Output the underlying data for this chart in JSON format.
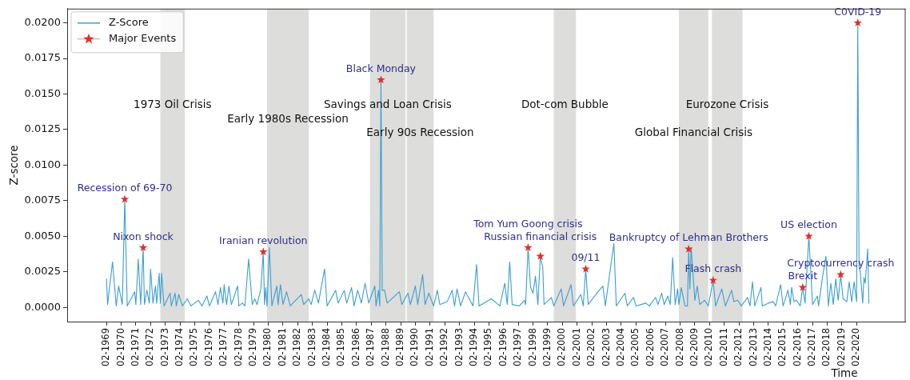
{
  "chart_data": {
    "type": "line",
    "xlabel": "Time",
    "ylabel": "Z-score",
    "legend": "top left",
    "xlim": [
      "1966-06",
      "2023-06"
    ],
    "ylim": [
      -0.001,
      0.021
    ],
    "xticks": [
      {
        "value": "1969-02",
        "label": "02-1969"
      },
      {
        "value": "1970-02",
        "label": "02-1970"
      },
      {
        "value": "1971-02",
        "label": "02-1971"
      },
      {
        "value": "1972-02",
        "label": "02-1972"
      },
      {
        "value": "1973-02",
        "label": "02-1973"
      },
      {
        "value": "1974-02",
        "label": "02-1974"
      },
      {
        "value": "1975-02",
        "label": "02-1975"
      },
      {
        "value": "1976-02",
        "label": "02-1976"
      },
      {
        "value": "1977-02",
        "label": "02-1977"
      },
      {
        "value": "1978-02",
        "label": "02-1978"
      },
      {
        "value": "1979-02",
        "label": "02-1979"
      },
      {
        "value": "1980-02",
        "label": "02-1980"
      },
      {
        "value": "1981-02",
        "label": "02-1981"
      },
      {
        "value": "1982-02",
        "label": "02-1982"
      },
      {
        "value": "1983-02",
        "label": "02-1983"
      },
      {
        "value": "1984-02",
        "label": "02-1984"
      },
      {
        "value": "1985-02",
        "label": "02-1985"
      },
      {
        "value": "1986-02",
        "label": "02-1986"
      },
      {
        "value": "1987-02",
        "label": "02-1987"
      },
      {
        "value": "1988-02",
        "label": "02-1988"
      },
      {
        "value": "1989-02",
        "label": "02-1989"
      },
      {
        "value": "1990-02",
        "label": "02-1990"
      },
      {
        "value": "1991-02",
        "label": "02-1991"
      },
      {
        "value": "1992-02",
        "label": "02-1992"
      },
      {
        "value": "1993-02",
        "label": "02-1993"
      },
      {
        "value": "1994-02",
        "label": "02-1994"
      },
      {
        "value": "1995-02",
        "label": "02-1995"
      },
      {
        "value": "1996-02",
        "label": "02-1996"
      },
      {
        "value": "1997-02",
        "label": "02-1997"
      },
      {
        "value": "1998-02",
        "label": "02-1998"
      },
      {
        "value": "1999-02",
        "label": "02-1999"
      },
      {
        "value": "2000-02",
        "label": "02-2000"
      },
      {
        "value": "2001-02",
        "label": "02-2001"
      },
      {
        "value": "2002-02",
        "label": "02-2002"
      },
      {
        "value": "2003-02",
        "label": "02-2003"
      },
      {
        "value": "2004-02",
        "label": "02-2004"
      },
      {
        "value": "2005-02",
        "label": "02-2005"
      },
      {
        "value": "2006-02",
        "label": "02-2006"
      },
      {
        "value": "2007-02",
        "label": "02-2007"
      },
      {
        "value": "2008-02",
        "label": "02-2008"
      },
      {
        "value": "2009-02",
        "label": "02-2009"
      },
      {
        "value": "2010-02",
        "label": "02-2010"
      },
      {
        "value": "2011-02",
        "label": "02-2011"
      },
      {
        "value": "2012-02",
        "label": "02-2012"
      },
      {
        "value": "2013-02",
        "label": "02-2013"
      },
      {
        "value": "2014-02",
        "label": "02-2014"
      },
      {
        "value": "2015-02",
        "label": "02-2015"
      },
      {
        "value": "2016-02",
        "label": "02-2016"
      },
      {
        "value": "2017-02",
        "label": "02-2017"
      },
      {
        "value": "2018-02",
        "label": "02-2018"
      },
      {
        "value": "2019-02",
        "label": "02-2019"
      },
      {
        "value": "2020-02",
        "label": "02-2020"
      }
    ],
    "yticks": [
      {
        "value": 0,
        "label": "0.0000"
      },
      {
        "value": 0.0025,
        "label": "0.0025"
      },
      {
        "value": 0.005,
        "label": "0.0050"
      },
      {
        "value": 0.0075,
        "label": "0.0075"
      },
      {
        "value": 0.01,
        "label": "0.0100"
      },
      {
        "value": 0.0125,
        "label": "0.0125"
      },
      {
        "value": 0.015,
        "label": "0.0150"
      },
      {
        "value": 0.0175,
        "label": "0.0175"
      },
      {
        "value": 0.02,
        "label": "0.0200"
      }
    ],
    "series": [
      {
        "name": "Z-Score",
        "color": "#3a9fd2",
        "x": [
          "1969-02",
          "1969-03",
          "1969-07",
          "1969-10",
          "1969-12",
          "1970-03",
          "1970-05",
          "1970-07",
          "1971-01",
          "1971-02",
          "1971-04",
          "1971-06",
          "1971-08",
          "1971-09",
          "1971-11",
          "1972-01",
          "1972-02",
          "1972-04",
          "1972-06",
          "1972-07",
          "1972-09",
          "1972-10",
          "1972-11",
          "1973-01",
          "1973-06",
          "1973-07",
          "1973-10",
          "1973-11",
          "1974-01",
          "1974-04",
          "1974-08",
          "1974-11",
          "1975-05",
          "1975-08",
          "1975-12",
          "1976-02",
          "1976-07",
          "1976-09",
          "1976-11",
          "1977-01",
          "1977-02",
          "1977-04",
          "1977-06",
          "1977-08",
          "1978-01",
          "1978-02",
          "1978-05",
          "1978-07",
          "1978-10",
          "1979-01",
          "1979-03",
          "1979-05",
          "1979-08",
          "1979-10",
          "1979-11",
          "1979-12",
          "1980-01",
          "1980-03",
          "1980-05",
          "1980-09",
          "1980-10",
          "1980-12",
          "1981-02",
          "1981-05",
          "1981-08",
          "1982-05",
          "1982-07",
          "1982-11",
          "1983-01",
          "1983-04",
          "1983-07",
          "1983-12",
          "1984-02",
          "1984-09",
          "1984-11",
          "1985-04",
          "1985-06",
          "1985-10",
          "1985-12",
          "1986-03",
          "1986-06",
          "1986-09",
          "1986-12",
          "1987-05",
          "1987-06",
          "1987-08",
          "1987-09",
          "1987-10",
          "1987-11",
          "1988-01",
          "1988-03",
          "1989-01",
          "1989-03",
          "1989-08",
          "1989-10",
          "1990-02",
          "1990-04",
          "1990-08",
          "1990-10",
          "1991-01",
          "1991-05",
          "1991-08",
          "1991-10",
          "1992-04",
          "1992-08",
          "1992-10",
          "1992-12",
          "1993-03",
          "1993-07",
          "1994-01",
          "1994-04",
          "1994-06",
          "1995-04",
          "1995-11",
          "1996-03",
          "1996-05",
          "1996-07",
          "1996-09",
          "1997-03",
          "1997-07",
          "1997-08",
          "1997-10",
          "1997-12",
          "1998-02",
          "1998-04",
          "1998-06",
          "1998-08",
          "1998-10",
          "1998-11",
          "1999-05",
          "1999-07",
          "2000-01",
          "2000-03",
          "2000-09",
          "2000-11",
          "2001-05",
          "2001-07",
          "2001-09",
          "2001-11",
          "2002-08",
          "2002-11",
          "2003-01",
          "2003-08",
          "2003-10",
          "2004-05",
          "2004-07",
          "2004-12",
          "2005-02",
          "2005-10",
          "2006-01",
          "2006-06",
          "2006-08",
          "2006-11",
          "2007-01",
          "2007-04",
          "2007-06",
          "2007-08",
          "2007-10",
          "2007-12",
          "2008-01",
          "2008-03",
          "2008-06",
          "2008-08",
          "2008-09",
          "2008-10",
          "2008-11",
          "2009-02",
          "2009-04",
          "2009-06",
          "2009-10",
          "2010-01",
          "2010-05",
          "2010-07",
          "2010-12",
          "2011-03",
          "2011-08",
          "2011-10",
          "2012-01",
          "2012-04",
          "2012-09",
          "2012-11",
          "2013-01",
          "2013-03",
          "2013-08",
          "2013-09",
          "2014-02",
          "2014-06",
          "2014-08",
          "2014-12",
          "2015-02",
          "2015-06",
          "2015-08",
          "2015-09",
          "2015-11",
          "2016-01",
          "2016-04",
          "2016-06",
          "2016-08",
          "2016-11",
          "2017-02",
          "2017-06",
          "2017-07",
          "2017-10",
          "2018-01",
          "2018-03",
          "2018-05",
          "2018-07",
          "2018-09",
          "2018-11",
          "2019-01",
          "2019-03",
          "2019-06",
          "2019-08",
          "2019-10",
          "2019-12",
          "2020-02",
          "2020-03",
          "2020-04",
          "2020-05",
          "2020-07",
          "2020-08",
          "2020-09",
          "2020-11",
          "2020-12"
        ],
        "values": [
          0.002,
          0.0002,
          0.0032,
          0.0001,
          0.0015,
          0.0002,
          0.0076,
          0.0001,
          0.0011,
          0.0002,
          0.0034,
          0.0002,
          0.0042,
          0.0002,
          0.0012,
          0.0003,
          0.0027,
          0.0003,
          0.0015,
          0.0003,
          0.0024,
          0.0003,
          0.0024,
          0.0001,
          0.001,
          0.0001,
          0.001,
          0.0001,
          0.0009,
          0.0001,
          0.0006,
          0.0001,
          0.0005,
          0.0001,
          0.0008,
          0.0001,
          0.0011,
          0.0002,
          0.0014,
          0.0003,
          0.0016,
          0.0002,
          0.0015,
          0.0002,
          0.0015,
          0.0001,
          0.0003,
          0.0001,
          0.0034,
          0.0002,
          0.0006,
          0.0002,
          0.0013,
          0.0039,
          0.0002,
          0.0014,
          0.0001,
          0.0042,
          0.0001,
          0.0015,
          0.0002,
          0.0016,
          0.0002,
          0.0011,
          0.0001,
          0.0009,
          0.0002,
          0.0006,
          0.0002,
          0.0012,
          0.0003,
          0.0027,
          0.0001,
          0.0012,
          0.0003,
          0.0012,
          0.0003,
          0.0014,
          0.0001,
          0.0012,
          0.0003,
          0.0017,
          0.0003,
          0.0015,
          0.0001,
          0.0012,
          0.0001,
          0.016,
          0.0012,
          0.0012,
          0.0003,
          0.0011,
          0.0002,
          0.001,
          0.0002,
          0.0015,
          0.0002,
          0.0023,
          0.0002,
          0.001,
          0.0001,
          0.0012,
          0.0002,
          0.0004,
          0.0012,
          0.0001,
          0.0013,
          0.0001,
          0.0011,
          0.0001,
          0.003,
          0.0001,
          0.0006,
          0.0001,
          0.0017,
          0.0002,
          0.0032,
          0.0002,
          0.0001,
          0.0005,
          0.0002,
          0.0042,
          0.0014,
          0.001,
          0.0022,
          0.0002,
          0.0036,
          0.0028,
          0.0002,
          0.0007,
          0.0001,
          0.0013,
          0.0001,
          0.0016,
          0.0001,
          0.0009,
          0.0001,
          0.0027,
          0.0002,
          0.0012,
          0.0015,
          0.0001,
          0.0045,
          0.0001,
          0.001,
          0.0001,
          0.0007,
          0.0001,
          0.0003,
          0.0001,
          0.0007,
          0.0002,
          0.001,
          0.0002,
          0.0008,
          0.0002,
          0.0035,
          0.0002,
          0.0013,
          0.0002,
          0.0014,
          0.0001,
          0.0001,
          0.0041,
          0.0013,
          0.0042,
          0.0005,
          0.0015,
          0.0002,
          0.0005,
          0.0001,
          0.0019,
          0.0001,
          0.0013,
          0.0001,
          0.0012,
          0.0004,
          0.0005,
          0.0001,
          0.0007,
          0.0001,
          0.0018,
          0.0001,
          0.0014,
          0.0001,
          0.0003,
          0.0004,
          0.0001,
          0.0016,
          0.0001,
          0.0012,
          0.0002,
          0.0014,
          0.0004,
          0.0005,
          0.0001,
          0.0014,
          0.0003,
          0.005,
          0.0002,
          0.0008,
          0.0001,
          0.002,
          0.0036,
          0.0001,
          0.0017,
          0.0002,
          0.002,
          0.0005,
          0.0023,
          0.0006,
          0.0004,
          0.0018,
          0.0004,
          0.0018,
          0.0004,
          0.02,
          0.0029,
          0.0025,
          0.0003,
          0.0021,
          0.0017,
          0.0041,
          0.0003
        ]
      },
      {
        "name": "Major Events",
        "type": "scatter",
        "marker": "star",
        "color": "#e42d2a",
        "x": [
          "1970-05",
          "1971-08",
          "1979-10",
          "1987-10",
          "1997-10",
          "1998-08",
          "2001-09",
          "2008-09",
          "2010-05",
          "2016-06",
          "2016-11",
          "2019-01",
          "2020-03"
        ],
        "values": [
          0.0076,
          0.0042,
          0.0039,
          0.016,
          0.0042,
          0.0036,
          0.0027,
          0.0041,
          0.0019,
          0.0014,
          0.005,
          0.0023,
          0.02
        ]
      }
    ],
    "bands": [
      {
        "axis": "x",
        "from": "1972-10",
        "to": "1974-06",
        "label": "1973 Oil Crisis",
        "color": "#dddddb"
      },
      {
        "axis": "x",
        "from": "1980-01",
        "to": "1982-11",
        "label": "Early 1980s Recession",
        "color": "#dddddb"
      },
      {
        "axis": "x",
        "from": "1987-01",
        "to": "1989-06",
        "label": "Savings and Loan Crisis",
        "color": "#dddddb"
      },
      {
        "axis": "x",
        "from": "1989-07",
        "to": "1991-05",
        "label": "Early 90s Recession",
        "color": "#dddddb"
      },
      {
        "axis": "x",
        "from": "1999-07",
        "to": "2001-01",
        "label": "Dot-com Bubble",
        "color": "#dddddb"
      },
      {
        "axis": "x",
        "from": "2008-01",
        "to": "2010-01",
        "label": "Global Financial Crisis",
        "color": "#dddddb"
      },
      {
        "axis": "x",
        "from": "2010-04",
        "to": "2012-05",
        "label": "Eurozone Crisis",
        "color": "#dddddb"
      }
    ],
    "annotations": [
      {
        "text": "Recession of 69-70",
        "x": "1970-05",
        "y": 0.0076
      },
      {
        "text": "Nixon shock",
        "x": "1971-08",
        "y": 0.0042
      },
      {
        "text": "Iranian revolution",
        "x": "1979-10",
        "y": 0.0039
      },
      {
        "text": "Black Monday",
        "x": "1987-10",
        "y": 0.016
      },
      {
        "text": "Tom Yum Goong crisis",
        "x": "1997-10",
        "y": 0.0042
      },
      {
        "text": "Russian financial crisis",
        "x": "1998-08",
        "y": 0.0036
      },
      {
        "text": "09/11",
        "x": "2001-09",
        "y": 0.0027
      },
      {
        "text": "Bankruptcy of Lehman Brothers",
        "x": "2008-09",
        "y": 0.0041
      },
      {
        "text": "Flash crash",
        "x": "2010-05",
        "y": 0.0019
      },
      {
        "text": "Brexit",
        "x": "2016-06",
        "y": 0.0014
      },
      {
        "text": "US election",
        "x": "2016-11",
        "y": 0.005
      },
      {
        "text": "Cryptocurrency crash",
        "x": "2019-01",
        "y": 0.0023
      },
      {
        "text": "C0VID-19",
        "x": "2020-03",
        "y": 0.02
      }
    ]
  }
}
